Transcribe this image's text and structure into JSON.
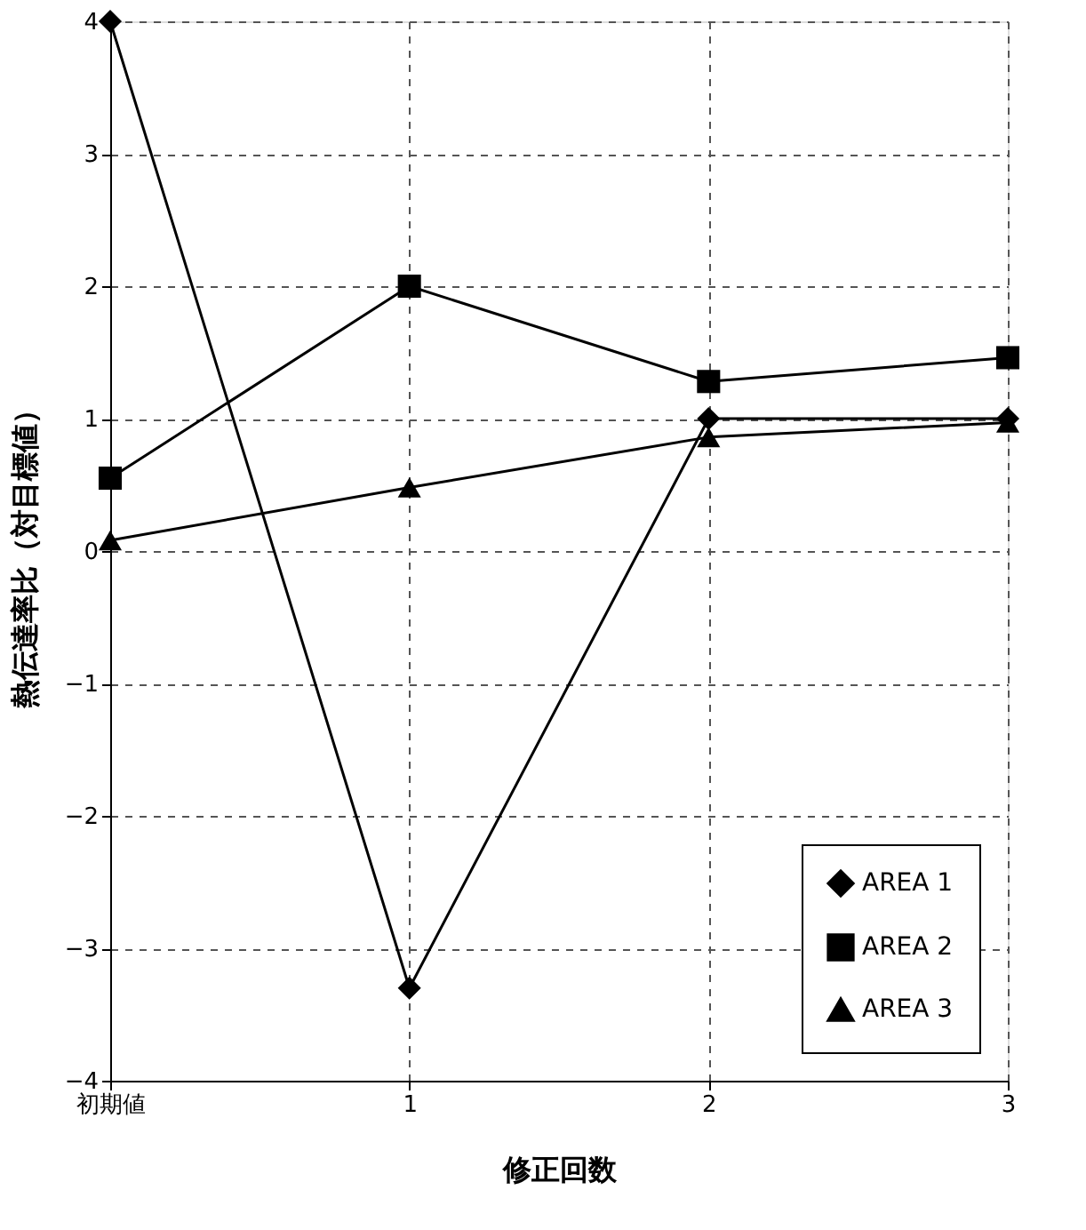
{
  "chart_data": {
    "type": "line",
    "xlabel": "修正回数",
    "ylabel": "熱伝達率比（対目標値）",
    "categories": [
      "初期値",
      "1",
      "2",
      "3"
    ],
    "series": [
      {
        "name": "AREA 1",
        "color": "#000000",
        "marker": "diamond",
        "values": [
          4.0,
          -3.3,
          1.0,
          1.0
        ]
      },
      {
        "name": "AREA 2",
        "color": "#000000",
        "marker": "square",
        "values": [
          0.55,
          2.0,
          1.28,
          1.46
        ]
      },
      {
        "name": "AREA 3",
        "color": "#000000",
        "marker": "triangle",
        "values": [
          0.08,
          0.48,
          0.86,
          0.97
        ]
      }
    ],
    "ylim": [
      -4,
      4
    ],
    "yticks": [
      -4,
      -3,
      -2,
      -1,
      0,
      1,
      2,
      3,
      4
    ],
    "grid": true,
    "legend": "bottom right",
    "line_style": "solid"
  }
}
